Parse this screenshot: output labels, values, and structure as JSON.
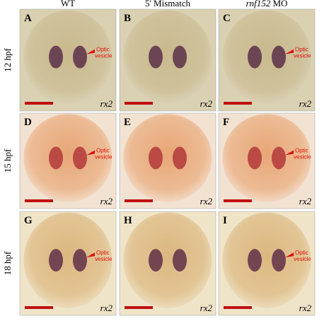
{
  "columns": [
    [
      "WT"
    ],
    [
      "5' Mismatch"
    ],
    [
      "rnf152",
      " MO"
    ]
  ],
  "rows": [
    "12 hpf",
    "15 hpf",
    "18 hpf"
  ],
  "panels": [
    {
      "letter": "A",
      "gene": "rx2",
      "annotation": [
        "Optic",
        "vesicle"
      ]
    },
    {
      "letter": "B",
      "gene": "rx2"
    },
    {
      "letter": "C",
      "gene": "rx2",
      "annotation": [
        "Optic",
        "vesicle"
      ]
    },
    {
      "letter": "D",
      "gene": "rx2",
      "annotation": [
        "Optic",
        "vesicle"
      ]
    },
    {
      "letter": "E",
      "gene": "rx2"
    },
    {
      "letter": "F",
      "gene": "rx2",
      "annotation": [
        "Optic",
        "vesicle"
      ]
    },
    {
      "letter": "G",
      "gene": "rx2",
      "annotation": [
        "Optic",
        "vesicle"
      ]
    },
    {
      "letter": "H",
      "gene": "rx2"
    },
    {
      "letter": "I",
      "gene": "rx2",
      "annotation": [
        "Optic",
        "vesicle"
      ]
    }
  ]
}
